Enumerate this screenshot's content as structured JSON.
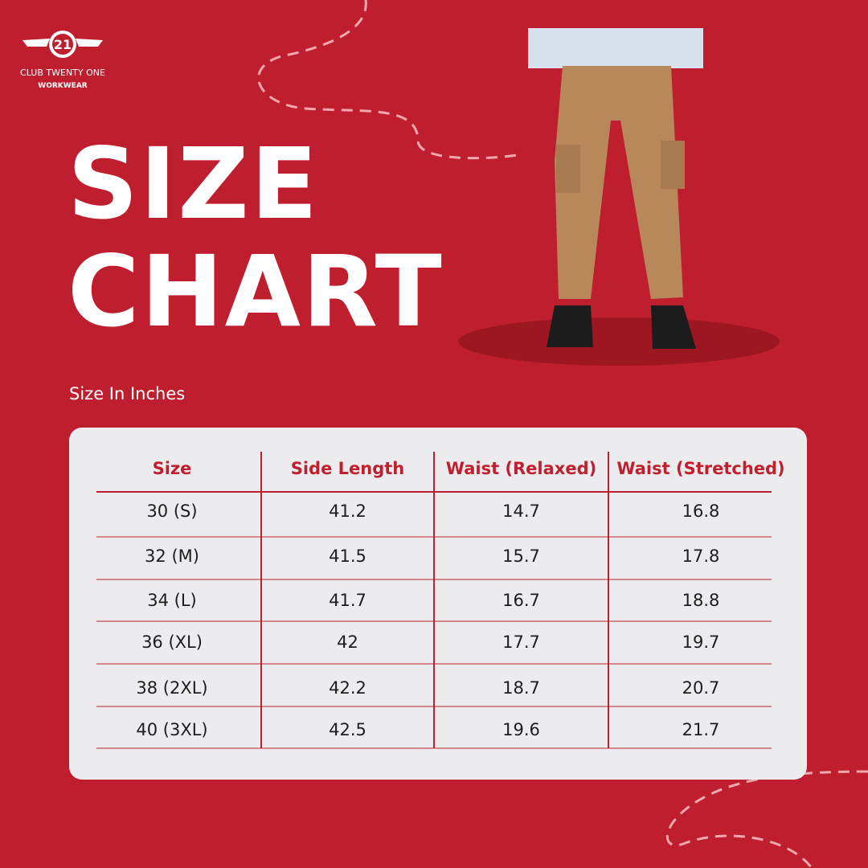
{
  "logo": {
    "badge": "21",
    "name": "CLUB TWENTY ONE",
    "tagline": "WORKWEAR"
  },
  "header": {
    "title_line1": "SIZE",
    "title_line2": "CHART",
    "subtitle": "Size In Inches"
  },
  "table": {
    "columns": [
      "Size",
      "Side Length",
      "Waist (Relaxed)",
      "Waist (Stretched)"
    ],
    "rows": [
      [
        "30 (S)",
        "41.2",
        "14.7",
        "16.8"
      ],
      [
        "32 (M)",
        "41.5",
        "15.7",
        "17.8"
      ],
      [
        "34 (L)",
        "41.7",
        "16.7",
        "18.8"
      ],
      [
        "36 (XL)",
        "42",
        "17.7",
        "19.7"
      ],
      [
        "38 (2XL)",
        "42.2",
        "18.7",
        "20.7"
      ],
      [
        "40 (3XL)",
        "42.5",
        "19.6",
        "21.7"
      ]
    ]
  }
}
